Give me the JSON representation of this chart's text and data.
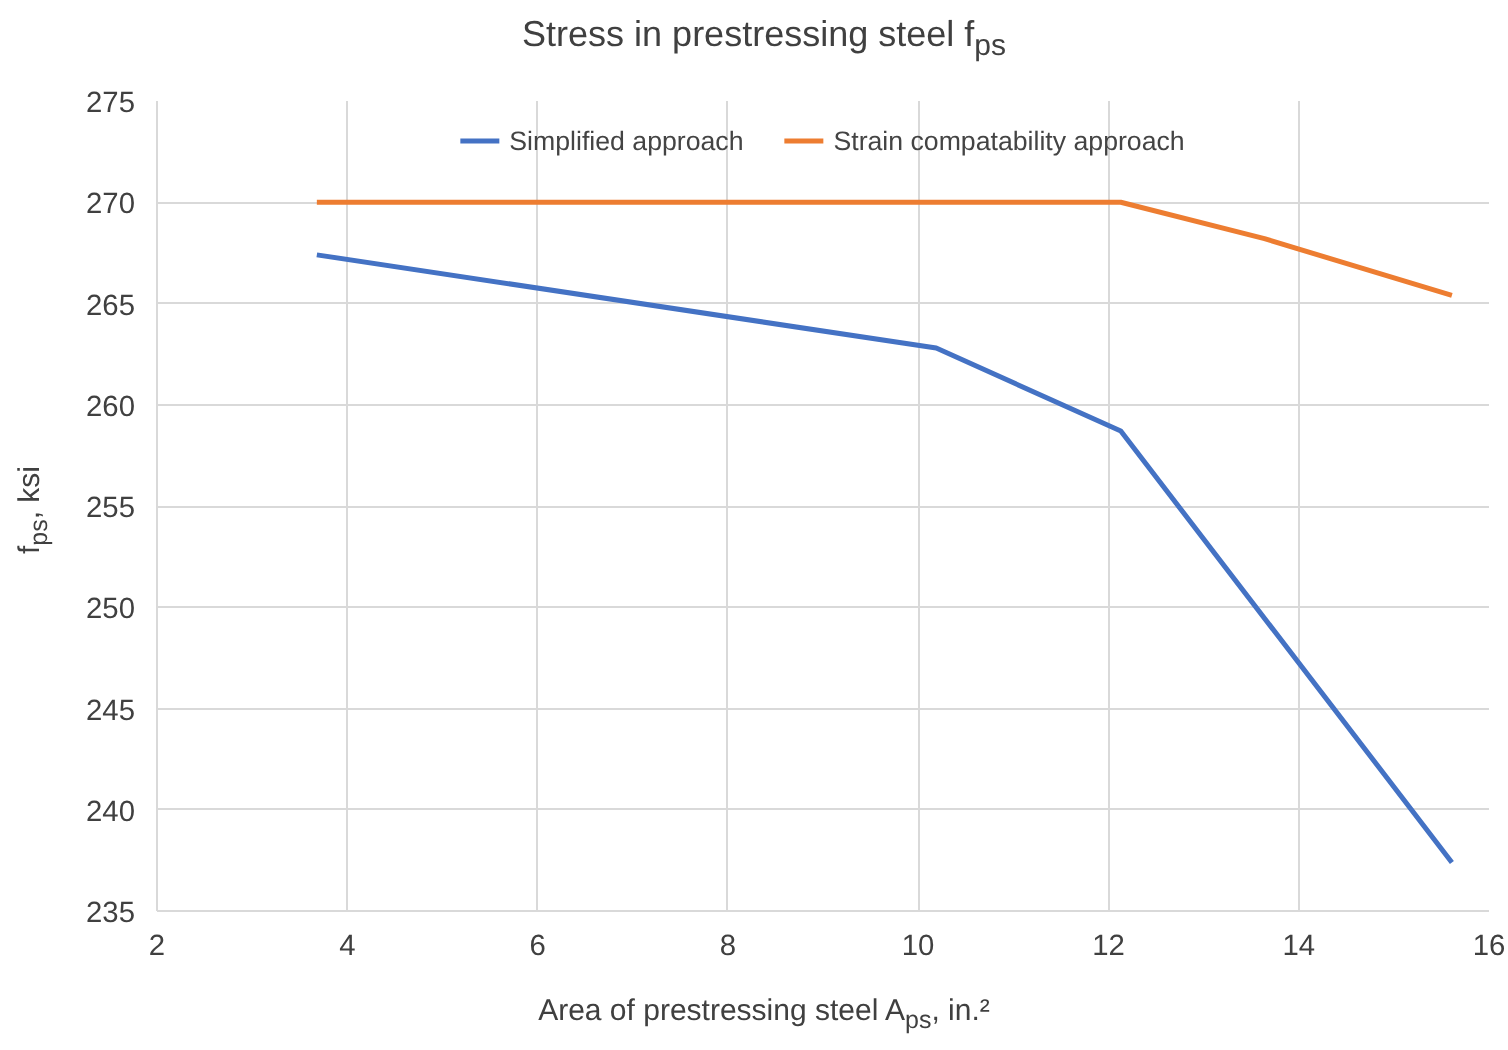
{
  "chart_data": {
    "type": "line",
    "title": "Stress in prestressing steel f$_{ps}$",
    "xlabel": "Area of prestressing steel A$_{ps}$, in.²",
    "ylabel": "f$_{ps}$, ksi",
    "series": [
      {
        "name": "Simplified approach",
        "color": "#4472c4",
        "x": [
          3.68,
          10.19,
          12.13,
          15.61
        ],
        "values": [
          267.4,
          262.8,
          258.7,
          237.4
        ]
      },
      {
        "name": "Strain compatability approach",
        "color": "#ed7d31",
        "x": [
          3.68,
          12.13,
          13.64,
          15.61
        ],
        "values": [
          270,
          270,
          268.2,
          265.4
        ]
      }
    ],
    "xlim": [
      2,
      16
    ],
    "xticks": [
      2,
      4,
      6,
      8,
      10,
      12,
      14,
      16
    ],
    "ylim": [
      235,
      275
    ],
    "yticks": [
      235,
      240,
      245,
      250,
      255,
      260,
      265,
      270,
      275
    ],
    "grid": true,
    "legend": "top",
    "marker": "none",
    "line_style": "solid"
  }
}
